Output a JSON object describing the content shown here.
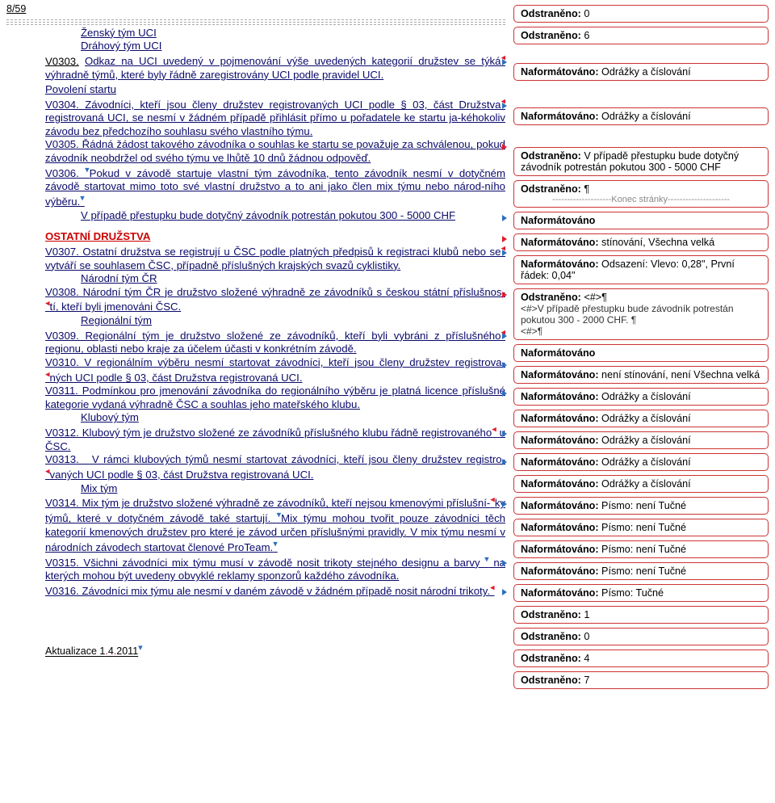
{
  "header": "8/59",
  "teams": {
    "a": "Ženský tým UCI",
    "b": "Dráhový tým UCI"
  },
  "p": {
    "v0303": "V0303. Odkaz na UCI uvedený v pojmenování výše uvedených kategorií družstev se týká výhradně týmů, které byly řádně zaregistrovány UCI podle pravidel UCI.",
    "pov": "Povolení startu",
    "v0304": "V0304. Závodníci, kteří jsou členy družstev registrovaných UCI podle § 03, část Družstva registrovaná UCI, se nesmí v žádném případě přihlásit přímo u pořadatele ke startu jakéhokoliv závodu bez předchozího souhlasu svého vlastního týmu.",
    "v0305": "V0305. Řádná žádost takového závodníka o souhlas ke startu se považuje za schválenou, pokud závodník neobdržel od svého týmu ve lhůtě 10 dnů žádnou odpověď.",
    "v0306": "V0306. Pokud v závodě startuje vlastní tým závodníka, tento závodník nesmí v dotyčném závodě startovat mimo toto své vlastní družstvo a to ani jako člen mix týmu nebo národního výběru.",
    "fine": "V případě přestupku bude dotyčný závodník potrestán pokutou 300 - 5000 CHF",
    "ost": "OSTATNÍ DRUŽSTVA",
    "v0307": "V0307. Ostatní družstva se registrují u ČSC podle platných předpisů k registraci klubů nebo se vytváří se souhlasem ČSC, případně příslušných krajských svazů cyklistiky.",
    "ncr": "Národní tým ČR",
    "v0308": "V0308. Národní tým ČR je družstvo složené výhradně ze závodníků s českou státní příslušností, kteří byli jmenováni ČSC.",
    "reg": "Regionální tým",
    "v0309": "V0309. Regionální tým je družstvo složené ze závodníků, kteří byli vybráni z příslušného regionu, oblasti nebo kraje za účelem účasti v konkrétním závodě.",
    "v0310": "V0310. V regionálním výběru nesmí startovat závodníci, kteří jsou členy družstev registrovaných UCI podle § 03, část Družstva registrovaná UCI.",
    "v0311": "V0311. Podmínkou pro jmenování závodníka do regionálního výběru je platná licence příslušné kategorie vydaná výhradně ČSC a souhlas jeho mateřského klubu.",
    "klub": "Klubový tým",
    "v0312": "V0312. Klubový tým je družstvo složené ze závodníků příslušného klubu řádně registrovaného u ČSC.",
    "v0313": "V0313.   V rámci klubových týmů nesmí startovat závodníci, kteří jsou členy družstev registrovaných UCI podle § 03, část Družstva registrovaná UCI.",
    "mix": "Mix tým",
    "v0314": "V0314. Mix tým je družstvo složené výhradně ze závodníků, kteří nejsou kmenovými příslušníky týmů, které v dotyčném závodě také startují. Mix týmu mohou tvořit pouze závodníci těch kategorií kmenových družstev pro které je závod určen příslušnými pravidly. V mix týmu nesmí v národních závodech startovat členové ProTeam.",
    "v0315": "V0315. Všichni závodníci mix týmu musí v závodě nosit trikoty stejného designu a barvy   na kterých mohou být uvedeny obvyklé reklamy sponzorů každého závodníka.",
    "v0316": "V0316. Závodníci mix týmu ale nesmí v daném závodě v žádném případě nosit národní trikoty."
  },
  "balloons": [
    {
      "t": "Odstraněno: 0",
      "b": true
    },
    {
      "t": "Odstraněno: 6",
      "b": true
    },
    {
      "t": "Naformátováno: Odrážky a číslování",
      "b": true,
      "gap": 18
    },
    {
      "t": "Naformátováno: Odrážky a číslování",
      "b": true,
      "gap": 28
    },
    {
      "t": "Odstraněno: V případě přestupku bude dotyčný závodník potrestán pokutou 300 - 5000 CHF",
      "b": true,
      "gap": 22
    },
    {
      "t": "Odstraněno: ¶",
      "b": true,
      "extra": "Konec stránky"
    },
    {
      "t": "Naformátováno",
      "b": true
    },
    {
      "t": "Naformátováno: stínování, Všechna velká",
      "b": true
    },
    {
      "t": "Naformátováno: Odsazení: Vlevo:  0,28\", První řádek:  0,04\"",
      "b": true
    },
    {
      "t": "Odstraněno: <#>¶",
      "b": true,
      "extra2": "<#>V případě přestupku bude závodník potrestán pokutou 300 - 2000 CHF. ¶\n<#>¶"
    },
    {
      "t": "Naformátováno",
      "b": true
    },
    {
      "t": "Naformátováno: není stínování, není Všechna velká",
      "b": true
    },
    {
      "t": "Naformátováno: Odrážky a číslování",
      "b": true
    },
    {
      "t": "Naformátováno: Odrážky a číslování",
      "b": true
    },
    {
      "t": "Naformátováno: Odrážky a číslování",
      "b": true
    },
    {
      "t": "Naformátováno: Odrážky a číslování",
      "b": true
    },
    {
      "t": "Naformátováno: Odrážky a číslování",
      "b": true
    },
    {
      "t": "Naformátováno: Písmo: není Tučné",
      "b": true
    },
    {
      "t": "Naformátováno: Písmo: není Tučné",
      "b": true
    },
    {
      "t": "Naformátováno: Písmo: není Tučné",
      "b": true
    },
    {
      "t": "Naformátováno: Písmo: není Tučné",
      "b": true
    },
    {
      "t": "Naformátováno: Písmo: Tučné",
      "b": true
    },
    {
      "t": "Odstraněno: 1",
      "b": true
    },
    {
      "t": "Odstraněno: 0",
      "b": true
    },
    {
      "t": "Odstraněno: 4",
      "b": true
    },
    {
      "t": "Odstraněno: 7",
      "b": true
    }
  ],
  "footer": "Aktualizace 1.4.2011"
}
